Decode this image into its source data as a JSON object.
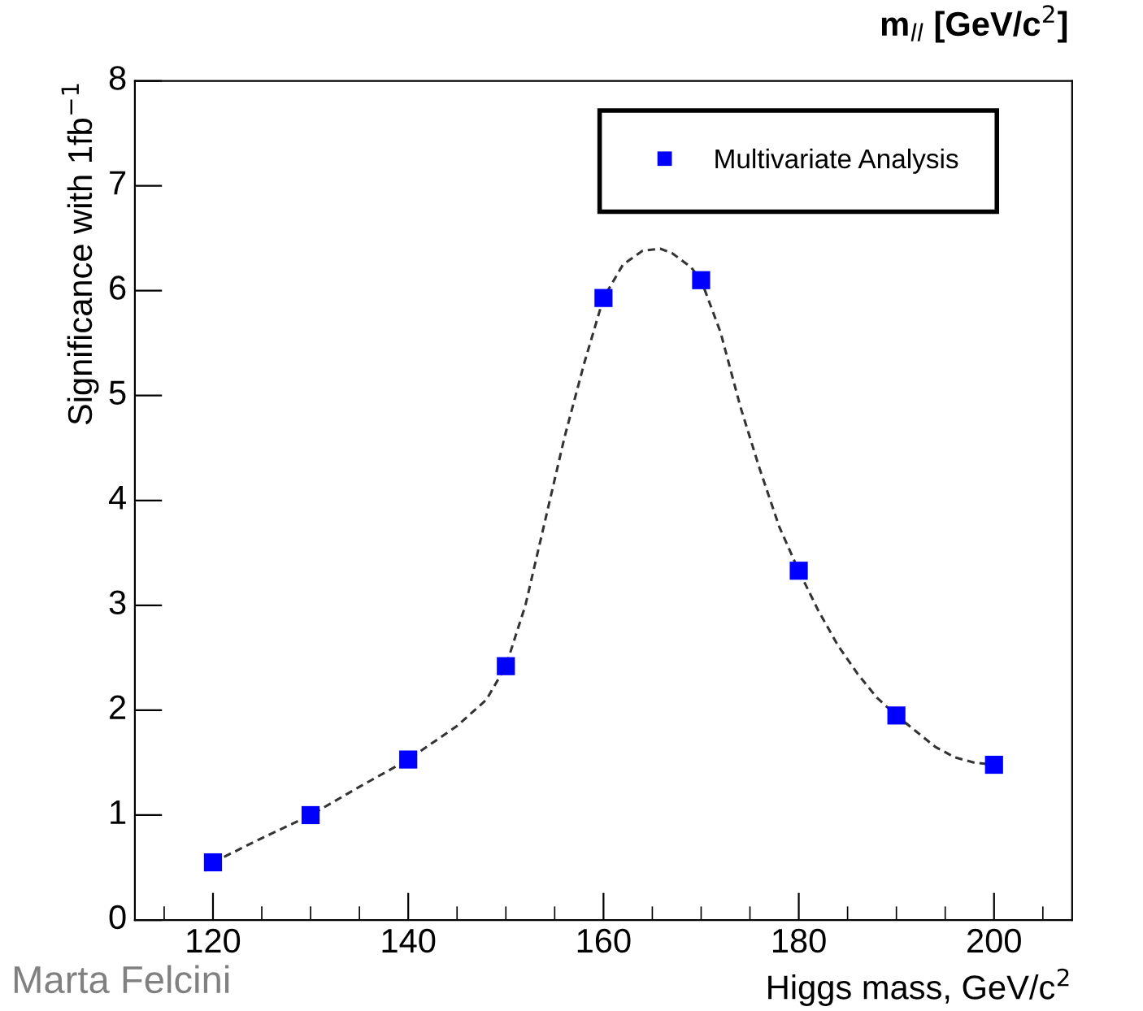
{
  "chart_data": {
    "type": "scatter",
    "xlabel": "Higgs mass, GeV/c$^{2}$",
    "ylabel": "Significance with 1fb$^{−1}$",
    "xlim": [
      112,
      208
    ],
    "ylim": [
      0,
      8
    ],
    "xticks": [
      120,
      140,
      160,
      180,
      200
    ],
    "yticks": [
      0,
      1,
      2,
      3,
      4,
      5,
      6,
      7,
      8
    ],
    "grid": false,
    "legend": "top right",
    "annotations": [
      "m$_{ll}$ [GeV/c$^{2}$]",
      "Marta Felcini"
    ],
    "series": [
      {
        "name": "Multivariate Analysis",
        "marker": "square",
        "color": "#0000ff",
        "x": [
          120,
          130,
          140,
          150,
          160,
          170,
          180,
          190,
          200
        ],
        "values": [
          0.55,
          1.0,
          1.53,
          2.42,
          5.93,
          6.1,
          3.33,
          1.95,
          1.48
        ]
      },
      {
        "type": "line",
        "line_style": "dashed",
        "marker": "none",
        "color": "#333333",
        "x": [
          120,
          125,
          130,
          135,
          140,
          145,
          148,
          150,
          152,
          154,
          156,
          158,
          160,
          162,
          164,
          165.8,
          167,
          169,
          170,
          172,
          174,
          176,
          178,
          180,
          182,
          184,
          186,
          188,
          190,
          192,
          194,
          196,
          198,
          200
        ],
        "values": [
          0.55,
          0.78,
          1.0,
          1.27,
          1.53,
          1.85,
          2.1,
          2.42,
          3.0,
          3.8,
          4.6,
          5.3,
          5.93,
          6.25,
          6.38,
          6.4,
          6.36,
          6.22,
          6.1,
          5.6,
          4.9,
          4.3,
          3.75,
          3.33,
          2.95,
          2.62,
          2.35,
          2.12,
          1.95,
          1.8,
          1.65,
          1.55,
          1.5,
          1.48
        ]
      }
    ]
  }
}
